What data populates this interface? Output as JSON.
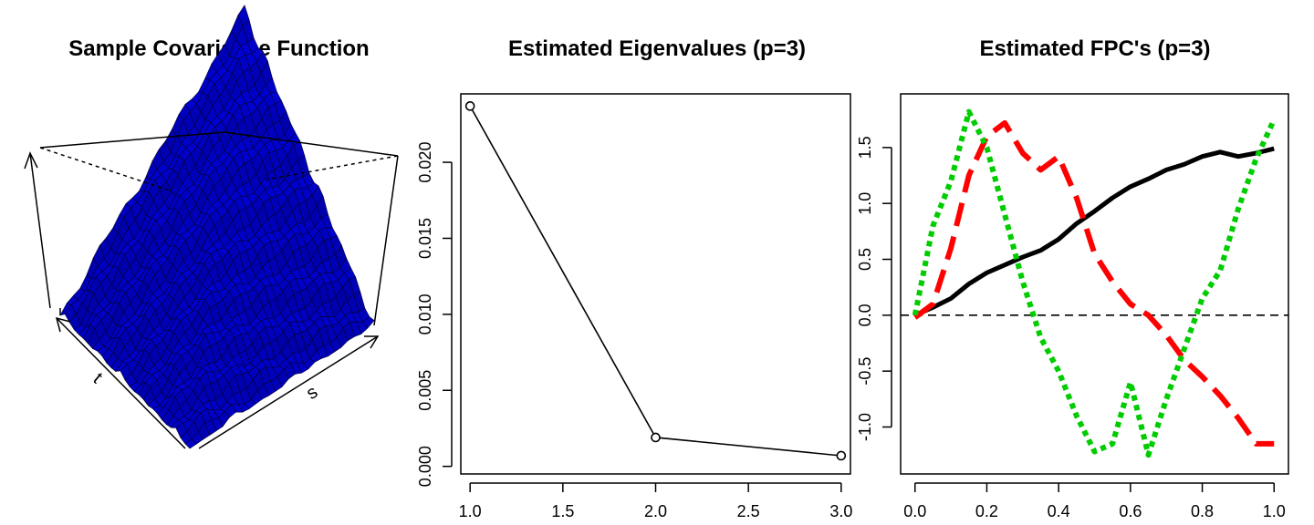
{
  "chart_data": [
    {
      "type": "surface",
      "title": "Sample Covariance Function",
      "xlabel": "s",
      "ylabel": "t",
      "zlabel": "",
      "colors": {
        "surface": "#0000cc",
        "mesh": "#000033",
        "box": "#000000"
      }
    },
    {
      "type": "line",
      "title": "Estimated Eigenvalues (p=3)",
      "x": [
        1.0,
        2.0,
        3.0
      ],
      "y": [
        0.0237,
        0.0019,
        0.0007
      ],
      "xlim": [
        0.95,
        3.05
      ],
      "ylim": [
        -0.0005,
        0.0245
      ],
      "xticks": [
        1.0,
        1.5,
        2.0,
        2.5,
        3.0
      ],
      "xtick_labels": [
        "1.0",
        "1.5",
        "2.0",
        "2.5",
        "3.0"
      ],
      "yticks": [
        0.0,
        0.005,
        0.01,
        0.015,
        0.02
      ],
      "ytick_labels": [
        "0.000",
        "0.005",
        "0.010",
        "0.015",
        "0.020"
      ],
      "marker": "open-circle",
      "colors": {
        "line": "#000000"
      }
    },
    {
      "type": "line",
      "title": "Estimated FPC's (p=3)",
      "x": [
        0.0,
        0.05,
        0.1,
        0.15,
        0.2,
        0.25,
        0.3,
        0.35,
        0.4,
        0.45,
        0.5,
        0.55,
        0.6,
        0.65,
        0.7,
        0.75,
        0.8,
        0.85,
        0.9,
        0.95,
        1.0
      ],
      "series": [
        {
          "values": [
            0.0,
            0.07,
            0.15,
            0.28,
            0.38,
            0.45,
            0.52,
            0.58,
            0.68,
            0.82,
            0.93,
            1.05,
            1.15,
            1.22,
            1.3,
            1.35,
            1.42,
            1.46,
            1.42,
            1.45,
            1.49
          ],
          "color": "#000000",
          "style": "solid"
        },
        {
          "values": [
            -0.02,
            0.1,
            0.6,
            1.25,
            1.6,
            1.72,
            1.45,
            1.3,
            1.42,
            1.05,
            0.55,
            0.3,
            0.1,
            0.0,
            -0.18,
            -0.4,
            -0.55,
            -0.72,
            -0.92,
            -1.15,
            -1.15
          ],
          "color": "#ff0000",
          "style": "dashed"
        },
        {
          "values": [
            0.0,
            0.8,
            1.2,
            1.82,
            1.5,
            0.9,
            0.3,
            -0.2,
            -0.5,
            -0.9,
            -1.22,
            -1.15,
            -0.6,
            -1.25,
            -0.75,
            -0.3,
            0.15,
            0.4,
            0.95,
            1.4,
            1.75
          ],
          "color": "#00cc00",
          "style": "dotted"
        }
      ],
      "reference_line": {
        "y": 0.0,
        "style": "dashed"
      },
      "xlim": [
        -0.04,
        1.04
      ],
      "ylim": [
        -1.42,
        1.98
      ],
      "xticks": [
        0.0,
        0.2,
        0.4,
        0.6,
        0.8,
        1.0
      ],
      "xtick_labels": [
        "0.0",
        "0.2",
        "0.4",
        "0.6",
        "0.8",
        "1.0"
      ],
      "yticks": [
        -1.0,
        -0.5,
        0.0,
        0.5,
        1.0,
        1.5
      ],
      "ytick_labels": [
        "-1.0",
        "-0.5",
        "0.0",
        "0.5",
        "1.0",
        "1.5"
      ]
    }
  ]
}
